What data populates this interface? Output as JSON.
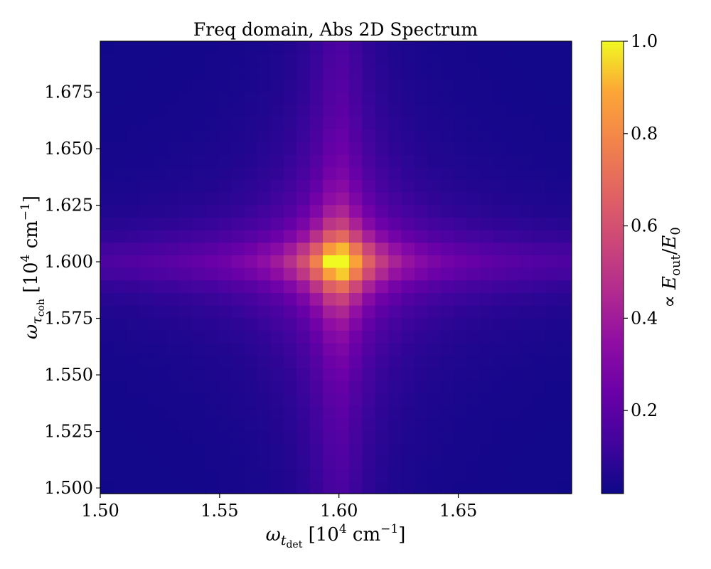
{
  "chart_data": {
    "type": "heatmap",
    "title": "Freq domain, Abs 2D Spectrum",
    "xlabel": {
      "symbol": "ω",
      "subscript": "t",
      "subsub": "det",
      "unit_prefix": " [10",
      "unit_exp": "4",
      "unit_mid": " cm",
      "unit_exp2": "−1",
      "unit_suffix": "]"
    },
    "ylabel": {
      "symbol": "ω",
      "subscript": "τ",
      "subsub": "coh",
      "unit_prefix": " [10",
      "unit_exp": "4",
      "unit_mid": " cm",
      "unit_exp2": "−1",
      "unit_suffix": "]"
    },
    "colorbar_label": {
      "prefix": "∝ ",
      "E": "E",
      "sub_out": "out",
      "slash": "/",
      "E2": "E",
      "sub0": "0"
    },
    "xlim": [
      1.5,
      1.6975
    ],
    "ylim": [
      1.4975,
      1.6975
    ],
    "xticks": [
      1.5,
      1.55,
      1.6,
      1.65
    ],
    "xtick_labels": [
      "1.50",
      "1.55",
      "1.60",
      "1.65"
    ],
    "yticks": [
      1.5,
      1.525,
      1.55,
      1.575,
      1.6,
      1.625,
      1.65,
      1.675
    ],
    "ytick_labels": [
      "1.500",
      "1.525",
      "1.550",
      "1.575",
      "1.600",
      "1.625",
      "1.650",
      "1.675"
    ],
    "colorbar": {
      "colormap": "plasma",
      "range": [
        0.02,
        1.0
      ],
      "ticks": [
        0.2,
        0.4,
        0.6,
        0.8,
        1.0
      ],
      "tick_labels": [
        "0.2",
        "0.4",
        "0.6",
        "0.8",
        "1.0"
      ]
    },
    "grid": {
      "nx": 36,
      "ny": 36
    },
    "peak": {
      "x": 1.6,
      "y": 1.6,
      "value": 1.0
    },
    "background_value": 0.02
  }
}
